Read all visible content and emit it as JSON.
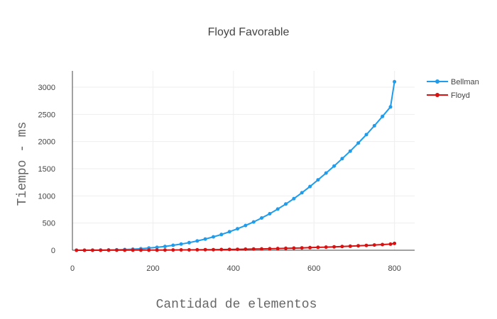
{
  "chart_data": {
    "type": "line",
    "title": "Floyd Favorable",
    "xlabel": "Cantidad de elementos",
    "ylabel": "Tiempo - ms",
    "xlim": [
      0,
      850
    ],
    "ylim": [
      0,
      3300
    ],
    "x_ticks": [
      "0",
      "200",
      "400",
      "600",
      "800"
    ],
    "y_ticks": [
      "0",
      "500",
      "1000",
      "1500",
      "2000",
      "2500",
      "3000"
    ],
    "grid": true,
    "legend_position": "top-right",
    "x": [
      10,
      30,
      50,
      70,
      90,
      110,
      130,
      150,
      170,
      190,
      210,
      230,
      250,
      270,
      290,
      310,
      330,
      350,
      370,
      390,
      410,
      430,
      450,
      470,
      490,
      510,
      530,
      550,
      570,
      590,
      610,
      630,
      650,
      670,
      690,
      710,
      730,
      750,
      770,
      790,
      800
    ],
    "series": [
      {
        "name": "Bellman",
        "color": "#1f9ceb",
        "values": [
          0,
          0,
          1,
          2,
          5,
          8,
          13,
          20,
          28,
          41,
          54,
          71,
          91,
          114,
          140,
          171,
          206,
          246,
          290,
          340,
          395,
          455,
          521,
          593,
          672,
          758,
          850,
          950,
          1058,
          1173,
          1295,
          1420,
          1549,
          1685,
          1823,
          1972,
          2127,
          2290,
          2461,
          2637,
          3100
        ]
      },
      {
        "name": "Floyd",
        "color": "#d91111",
        "values": [
          0,
          0,
          0,
          0,
          1,
          1,
          1,
          2,
          2,
          3,
          3,
          4,
          5,
          6,
          7,
          8,
          10,
          11,
          13,
          15,
          17,
          20,
          22,
          25,
          28,
          31,
          35,
          39,
          43,
          48,
          53,
          58,
          63,
          69,
          75,
          82,
          89,
          96,
          104,
          112,
          125
        ]
      }
    ]
  }
}
